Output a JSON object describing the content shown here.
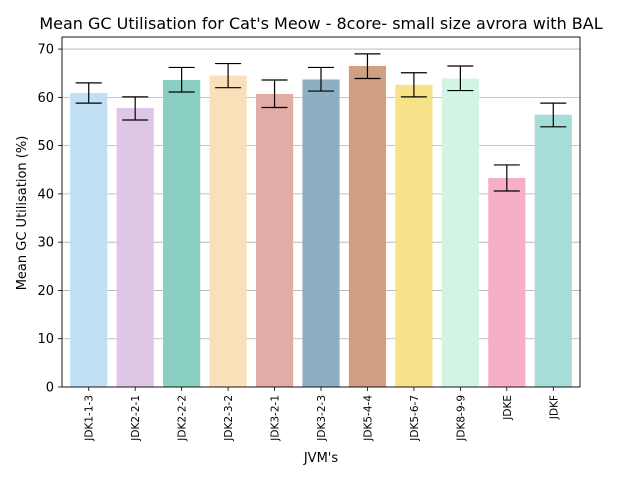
{
  "chart_data": {
    "type": "bar",
    "title": "Mean GC Utilisation for Cat's Meow - 8core- small size avrora with BAL",
    "xlabel": "JVM's",
    "ylabel": "Mean GC Utilisation (%)",
    "ylim": [
      0,
      72.5
    ],
    "yticks": [
      0,
      10,
      20,
      30,
      40,
      50,
      60,
      70
    ],
    "grid": "horizontal",
    "categories": [
      "JDK1-1-3",
      "JDK2-2-1",
      "JDK2-2-2",
      "JDK2-3-2",
      "JDK3-2-1",
      "JDK3-2-3",
      "JDK5-4-4",
      "JDK5-6-7",
      "JDK8-9-9",
      "JDKE",
      "JDKF"
    ],
    "values": [
      60.9,
      57.8,
      63.6,
      64.5,
      60.7,
      63.7,
      66.5,
      62.6,
      63.9,
      43.3,
      56.4
    ],
    "error_low": [
      58.8,
      55.3,
      61.1,
      62.0,
      57.9,
      61.3,
      63.9,
      60.1,
      61.4,
      40.6,
      53.9
    ],
    "error_high": [
      63.0,
      60.1,
      66.2,
      67.0,
      63.6,
      66.2,
      69.0,
      65.1,
      66.5,
      46.0,
      58.8
    ],
    "colors": [
      "#c2e0f4",
      "#ddc6e6",
      "#8acfc1",
      "#f9e0b8",
      "#e2aca6",
      "#8eaec2",
      "#d09e80",
      "#f7e28a",
      "#d2f4e3",
      "#f6afc7",
      "#a6ddd8"
    ]
  }
}
